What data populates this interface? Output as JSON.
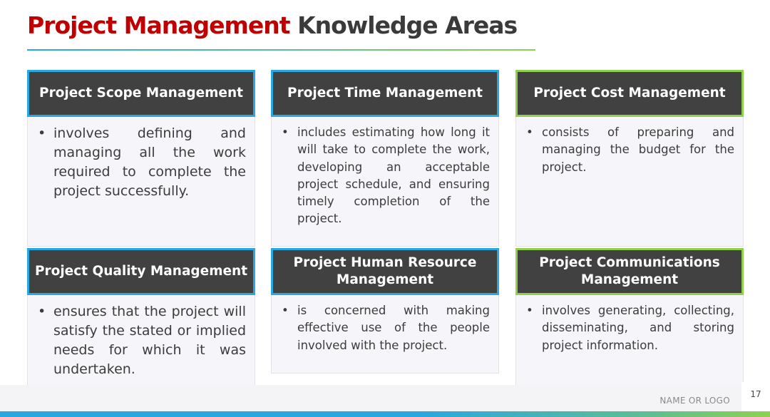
{
  "title": {
    "red": "Project Management",
    "dark": "Knowledge Areas"
  },
  "colors": {
    "title_red": "#c00000",
    "header_bg": "#414141",
    "blue_accent": "#29a8e0",
    "green_accent": "#8fd14f"
  },
  "cards": [
    {
      "header": "Project Scope Management",
      "accent": "blue",
      "text": "involves defining and managing all the work required to complete the project successfully."
    },
    {
      "header": "Project Time Management",
      "accent": "blue",
      "text": "includes estimating how long it will take to complete the work, developing an acceptable project schedule, and ensuring timely completion of the project."
    },
    {
      "header": "Project Cost Management",
      "accent": "green",
      "text": "consists of preparing and managing the budget for the project."
    },
    {
      "header": "Project Quality Management",
      "accent": "blue",
      "text": "ensures that the project will satisfy the stated or implied needs for which it was undertaken."
    },
    {
      "header": "Project Human Resource Management",
      "accent": "blue",
      "text": "is concerned with making effective use of the people involved with the project."
    },
    {
      "header": "Project Communications Management",
      "accent": "green",
      "text": "involves generating, collecting, disseminating, and storing project information."
    }
  ],
  "footer": {
    "name_logo": "NAME OR LOGO",
    "page_number": "17"
  }
}
